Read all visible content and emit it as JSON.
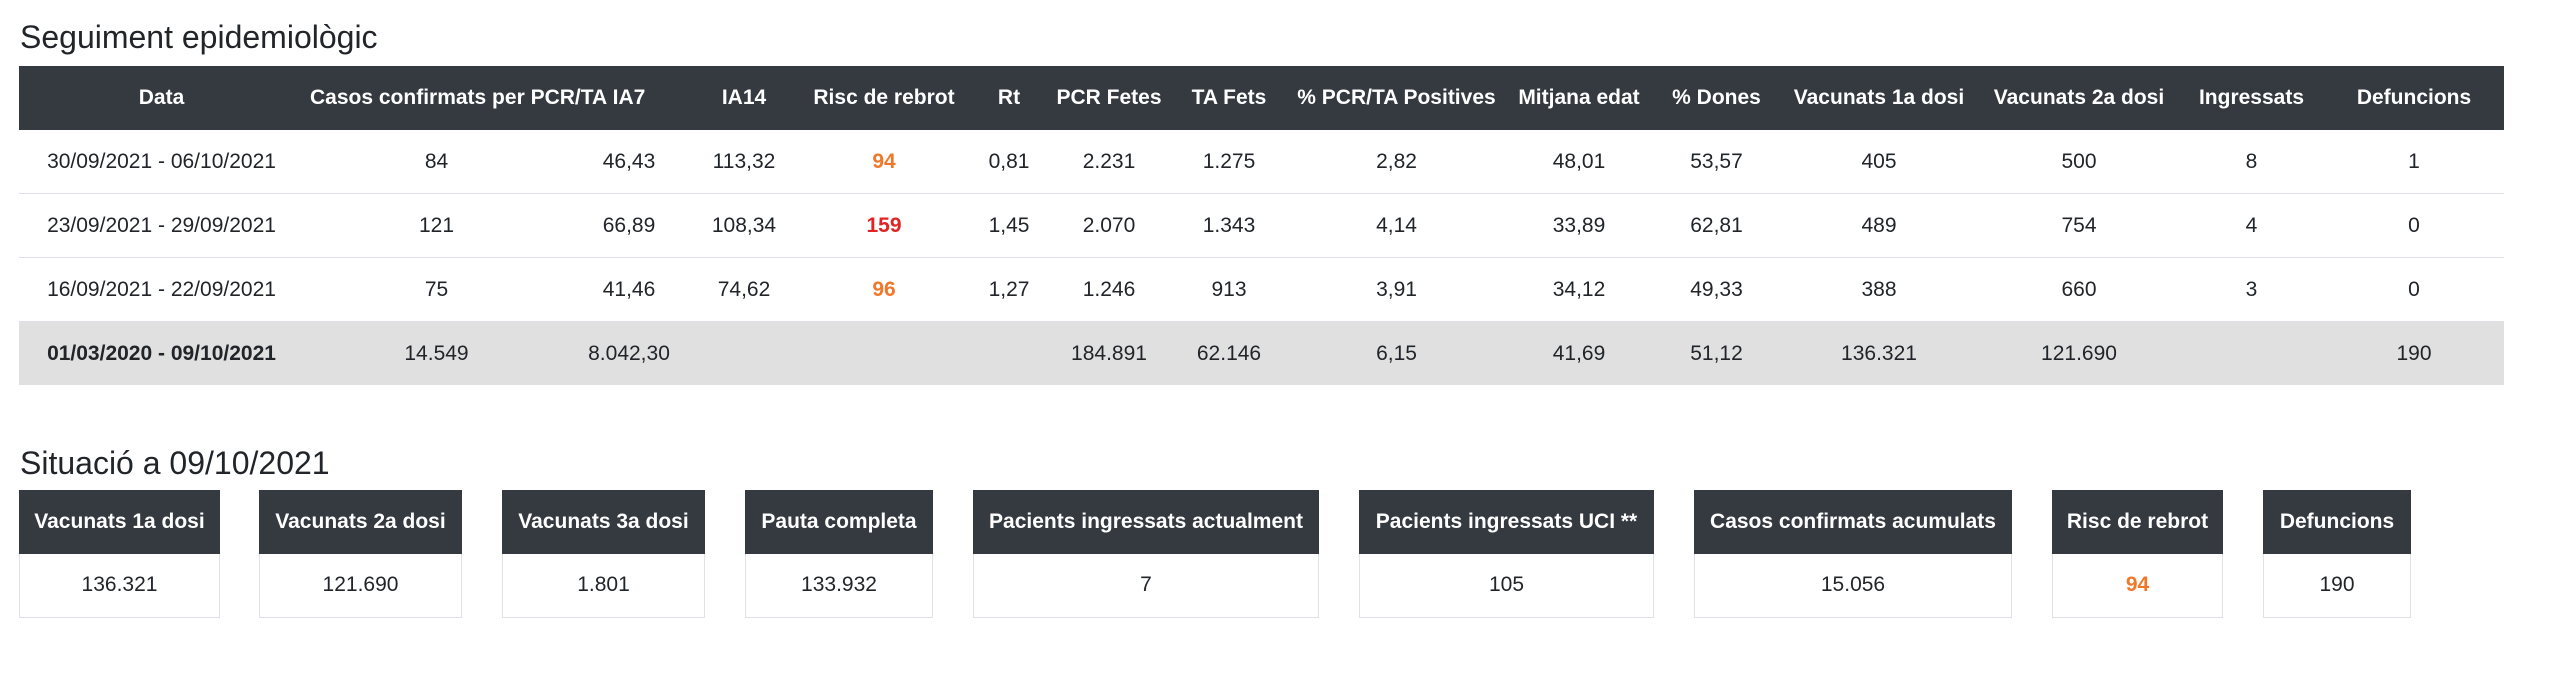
{
  "tracking": {
    "title": "Seguiment epidemiològic",
    "headers": [
      "Data",
      "Casos confirmats per PCR/TA",
      "IA7",
      "IA14",
      "Risc de rebrot",
      "Rt",
      "PCR Fetes",
      "TA Fets",
      "% PCR/TA Positives",
      "Mitjana edat",
      "% Dones",
      "Vacunats 1a dosi",
      "Vacunats 2a dosi",
      "Ingressats",
      "Defuncions"
    ],
    "rows": [
      {
        "date": "30/09/2021 - 06/10/2021",
        "cases": "84",
        "ia7": "46,43",
        "ia14": "113,32",
        "risk": "94",
        "risk_color": "#f0782a",
        "rt": "0,81",
        "pcr": "2.231",
        "ta": "1.275",
        "pct_pos": "2,82",
        "age": "48,01",
        "women": "53,57",
        "vac1": "405",
        "vac2": "500",
        "admitted": "8",
        "deaths": "1"
      },
      {
        "date": "23/09/2021 - 29/09/2021",
        "cases": "121",
        "ia7": "66,89",
        "ia14": "108,34",
        "risk": "159",
        "risk_color": "#e02424",
        "rt": "1,45",
        "pcr": "2.070",
        "ta": "1.343",
        "pct_pos": "4,14",
        "age": "33,89",
        "women": "62,81",
        "vac1": "489",
        "vac2": "754",
        "admitted": "4",
        "deaths": "0"
      },
      {
        "date": "16/09/2021 - 22/09/2021",
        "cases": "75",
        "ia7": "41,46",
        "ia14": "74,62",
        "risk": "96",
        "risk_color": "#f0782a",
        "rt": "1,27",
        "pcr": "1.246",
        "ta": "913",
        "pct_pos": "3,91",
        "age": "34,12",
        "women": "49,33",
        "vac1": "388",
        "vac2": "660",
        "admitted": "3",
        "deaths": "0"
      }
    ],
    "total": {
      "date": "01/03/2020 - 09/10/2021",
      "cases": "14.549",
      "ia7": "8.042,30",
      "ia14": "",
      "risk": "",
      "rt": "",
      "pcr": "184.891",
      "ta": "62.146",
      "pct_pos": "6,15",
      "age": "41,69",
      "women": "51,12",
      "vac1": "136.321",
      "vac2": "121.690",
      "admitted": "",
      "deaths": "190"
    }
  },
  "situation": {
    "title": "Situació a 09/10/2021",
    "cards": [
      {
        "label": "Vacunats 1a dosi",
        "value": "136.321"
      },
      {
        "label": "Vacunats 2a dosi",
        "value": "121.690"
      },
      {
        "label": "Vacunats 3a dosi",
        "value": "1.801"
      },
      {
        "label": "Pauta completa",
        "value": "133.932"
      },
      {
        "label": "Pacients ingressats actualment",
        "value": "7"
      },
      {
        "label": "Pacients ingressats UCI **",
        "value": "105"
      },
      {
        "label": "Casos confirmats acumulats",
        "value": "15.056"
      },
      {
        "label": "Risc de rebrot",
        "value": "94",
        "value_color": "#f0782a"
      },
      {
        "label": "Defuncions",
        "value": "190"
      }
    ]
  },
  "colors": {
    "header_bg": "#343a40",
    "total_row_bg": "#e0e0e0",
    "risk_orange": "#f0782a",
    "risk_red": "#e02424"
  }
}
